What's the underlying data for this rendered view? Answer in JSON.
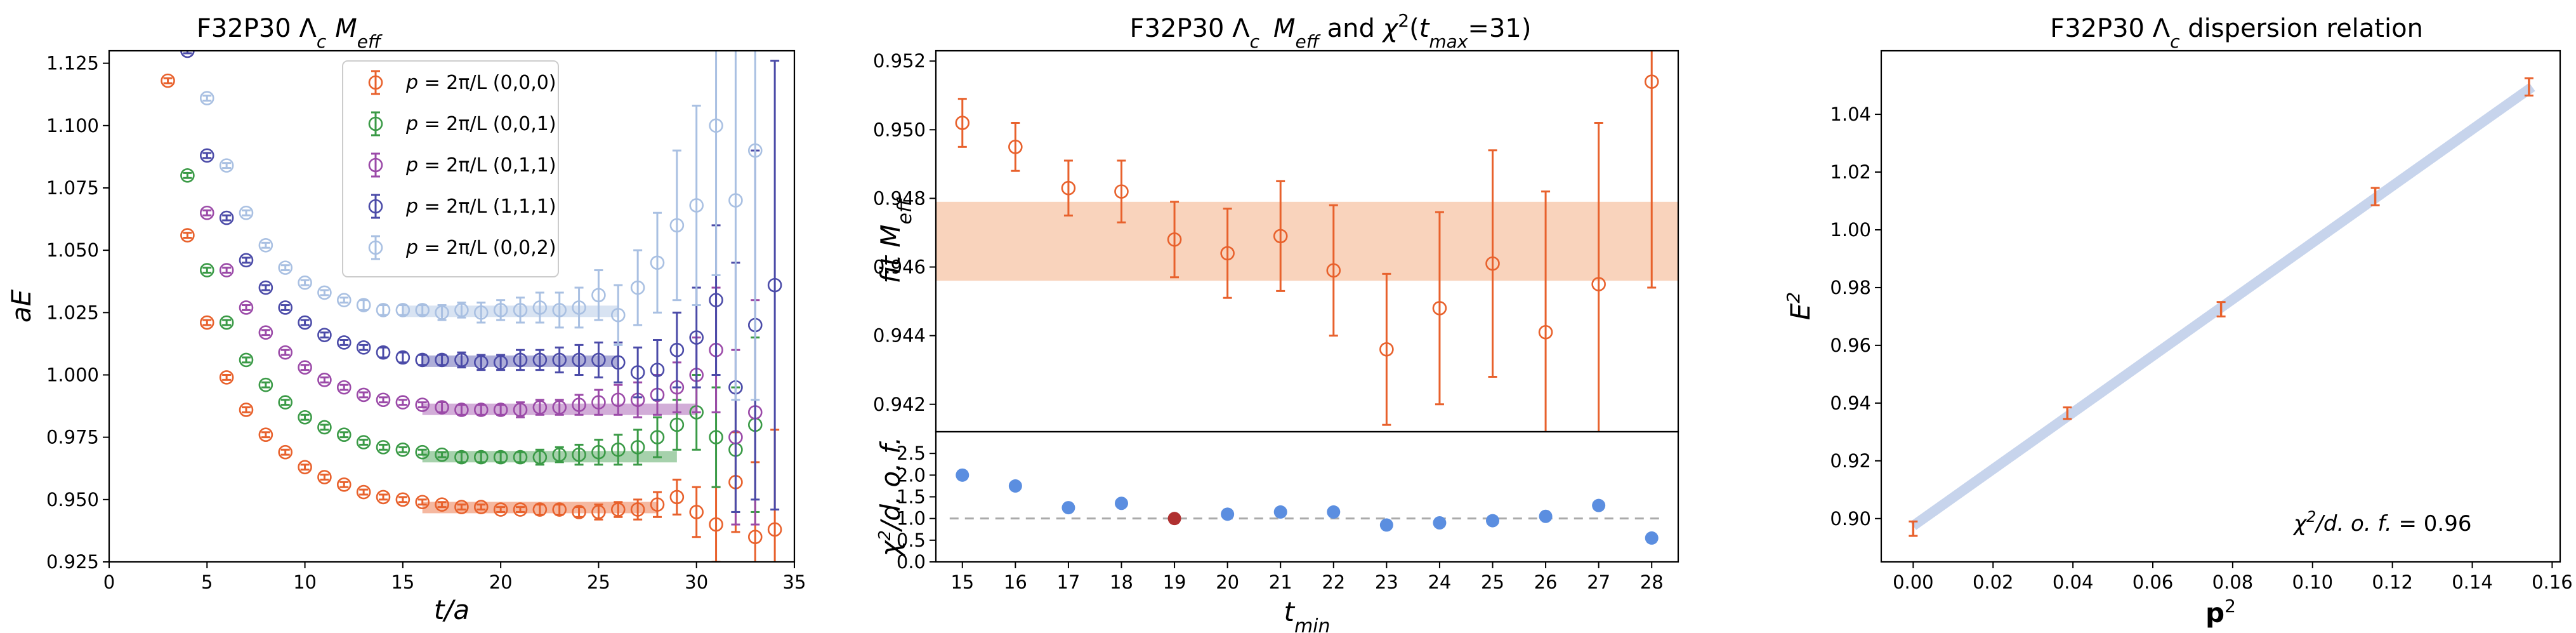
{
  "colors": {
    "p000": "#e8612c",
    "p001": "#3a9a46",
    "p011": "#9b4aa8",
    "p111": "#4b4ba8",
    "p002": "#a9c0e2",
    "band": "#f8cbb0",
    "chi_point": "#5b8ee0",
    "chi_highlight": "#b03030",
    "dispersion_line": "#c7d4ec"
  },
  "chart_data": [
    {
      "type": "scatter",
      "title": "F32P30 Λc Meff",
      "title_parts": {
        "prefix": "F32P30 Λ",
        "sub": "c",
        "suffix_italic": "M",
        "suffix_sub": "eff"
      },
      "xlabel": "t/a",
      "ylabel": "aE",
      "xlim": [
        0,
        35
      ],
      "ylim": [
        0.925,
        1.13
      ],
      "xticks": [
        "0",
        "5",
        "10",
        "15",
        "20",
        "25",
        "30",
        "35"
      ],
      "yticks": [
        "0.925",
        "0.950",
        "0.975",
        "1.000",
        "1.025",
        "1.050",
        "1.075",
        "1.100",
        "1.125"
      ],
      "legend_position": "top-center",
      "series": [
        {
          "key": "p000",
          "name": "p = 2π/L (0,0,0)",
          "momentum": "(0,0,0)",
          "x": [
            3,
            4,
            5,
            6,
            7,
            8,
            9,
            10,
            11,
            12,
            13,
            14,
            15,
            16,
            17,
            18,
            19,
            20,
            21,
            22,
            23,
            24,
            25,
            26,
            27,
            28,
            29,
            30,
            31,
            32,
            33,
            34
          ],
          "y": [
            1.118,
            1.056,
            1.021,
            0.999,
            0.986,
            0.976,
            0.969,
            0.963,
            0.959,
            0.956,
            0.953,
            0.951,
            0.95,
            0.949,
            0.948,
            0.947,
            0.947,
            0.946,
            0.946,
            0.946,
            0.946,
            0.945,
            0.945,
            0.946,
            0.946,
            0.948,
            0.951,
            0.945,
            0.94,
            0.957,
            0.935,
            0.938
          ],
          "err": [
            0.001,
            0.001,
            0.001,
            0.001,
            0.001,
            0.001,
            0.001,
            0.001,
            0.001,
            0.001,
            0.001,
            0.001,
            0.001,
            0.001,
            0.001,
            0.001,
            0.001,
            0.001,
            0.001,
            0.002,
            0.002,
            0.002,
            0.003,
            0.003,
            0.004,
            0.005,
            0.007,
            0.01,
            0.015,
            0.02,
            0.03,
            0.04
          ],
          "fit_range": [
            16,
            28
          ],
          "fit_value": 0.9468
        },
        {
          "key": "p001",
          "name": "p = 2π/L (0,0,1)",
          "momentum": "(0,0,1)",
          "x": [
            4,
            5,
            6,
            7,
            8,
            9,
            10,
            11,
            12,
            13,
            14,
            15,
            16,
            17,
            18,
            19,
            20,
            21,
            22,
            23,
            24,
            25,
            26,
            27,
            28,
            29,
            30,
            31,
            32,
            33
          ],
          "y": [
            1.08,
            1.042,
            1.021,
            1.006,
            0.996,
            0.989,
            0.983,
            0.979,
            0.976,
            0.973,
            0.971,
            0.97,
            0.969,
            0.968,
            0.967,
            0.967,
            0.967,
            0.967,
            0.967,
            0.968,
            0.968,
            0.969,
            0.97,
            0.971,
            0.975,
            0.98,
            0.985,
            0.975,
            0.97,
            0.98
          ],
          "err": [
            0.001,
            0.001,
            0.001,
            0.001,
            0.001,
            0.001,
            0.001,
            0.001,
            0.001,
            0.001,
            0.001,
            0.001,
            0.001,
            0.001,
            0.002,
            0.002,
            0.002,
            0.002,
            0.003,
            0.003,
            0.004,
            0.005,
            0.006,
            0.007,
            0.008,
            0.01,
            0.015,
            0.02,
            0.025,
            0.035
          ],
          "fit_range": [
            16,
            29
          ],
          "fit_value": 0.9672
        },
        {
          "key": "p011",
          "name": "p = 2π/L (0,1,1)",
          "momentum": "(0,1,1)",
          "x": [
            5,
            6,
            7,
            8,
            9,
            10,
            11,
            12,
            13,
            14,
            15,
            16,
            17,
            18,
            19,
            20,
            21,
            22,
            23,
            24,
            25,
            26,
            27,
            28,
            29,
            30,
            31,
            32,
            33
          ],
          "y": [
            1.065,
            1.042,
            1.027,
            1.017,
            1.009,
            1.003,
            0.998,
            0.995,
            0.992,
            0.99,
            0.989,
            0.988,
            0.987,
            0.986,
            0.986,
            0.986,
            0.986,
            0.987,
            0.987,
            0.988,
            0.989,
            0.99,
            0.99,
            0.992,
            0.995,
            1.0,
            1.01,
            0.975,
            0.985
          ],
          "err": [
            0.001,
            0.001,
            0.001,
            0.001,
            0.001,
            0.001,
            0.001,
            0.001,
            0.001,
            0.001,
            0.001,
            0.001,
            0.002,
            0.002,
            0.002,
            0.002,
            0.003,
            0.003,
            0.003,
            0.004,
            0.005,
            0.006,
            0.007,
            0.008,
            0.01,
            0.015,
            0.025,
            0.035,
            0.045
          ],
          "fit_range": [
            16,
            30
          ],
          "fit_value": 0.9862
        },
        {
          "key": "p111",
          "name": "p = 2π/L (1,1,1)",
          "momentum": "(1,1,1)",
          "x": [
            4,
            5,
            6,
            7,
            8,
            9,
            10,
            11,
            12,
            13,
            14,
            15,
            16,
            17,
            18,
            19,
            20,
            21,
            22,
            23,
            24,
            25,
            26,
            27,
            28,
            29,
            30,
            31,
            32,
            33,
            34
          ],
          "y": [
            1.13,
            1.088,
            1.063,
            1.046,
            1.035,
            1.027,
            1.021,
            1.016,
            1.013,
            1.011,
            1.009,
            1.007,
            1.006,
            1.006,
            1.006,
            1.005,
            1.005,
            1.006,
            1.006,
            1.006,
            1.006,
            1.006,
            1.005,
            1.001,
            1.002,
            1.01,
            1.015,
            1.03,
            0.995,
            1.02,
            1.036
          ],
          "err": [
            0.001,
            0.001,
            0.001,
            0.001,
            0.001,
            0.001,
            0.001,
            0.001,
            0.001,
            0.001,
            0.002,
            0.002,
            0.002,
            0.002,
            0.003,
            0.003,
            0.003,
            0.004,
            0.004,
            0.005,
            0.006,
            0.007,
            0.008,
            0.01,
            0.012,
            0.015,
            0.02,
            0.03,
            0.05,
            0.07,
            0.09
          ],
          "fit_range": [
            16,
            26
          ],
          "fit_value": 1.0055
        },
        {
          "key": "p002",
          "name": "p = 2π/L (0,0,2)",
          "momentum": "(0,0,2)",
          "x": [
            5,
            6,
            7,
            8,
            9,
            10,
            11,
            12,
            13,
            14,
            15,
            16,
            17,
            18,
            19,
            20,
            21,
            22,
            23,
            24,
            25,
            26,
            27,
            28,
            29,
            30,
            31,
            32,
            33
          ],
          "y": [
            1.111,
            1.084,
            1.065,
            1.052,
            1.043,
            1.037,
            1.033,
            1.03,
            1.028,
            1.026,
            1.026,
            1.026,
            1.025,
            1.026,
            1.025,
            1.026,
            1.026,
            1.027,
            1.026,
            1.027,
            1.032,
            1.024,
            1.035,
            1.045,
            1.06,
            1.068,
            1.1,
            1.07,
            1.09
          ],
          "err": [
            0.001,
            0.001,
            0.001,
            0.001,
            0.001,
            0.001,
            0.001,
            0.001,
            0.002,
            0.002,
            0.002,
            0.002,
            0.003,
            0.003,
            0.004,
            0.004,
            0.005,
            0.006,
            0.007,
            0.008,
            0.01,
            0.012,
            0.015,
            0.02,
            0.03,
            0.04,
            0.06,
            0.08,
            0.1
          ],
          "fit_range": [
            15,
            26
          ],
          "fit_value": 1.0255
        }
      ]
    },
    {
      "type": "scatter",
      "title": "F32P30 Λc Meff and χ2(tmax=31)",
      "title_parts": {
        "prefix": "F32P30 Λ",
        "sub": "c",
        "m": "M",
        "m_sub": "eff",
        "mid": " and ",
        "chi": "χ",
        "chi_sup": "2",
        "paren_open": "(",
        "t": "t",
        "t_sub": "max",
        "paren_close": "=31)"
      },
      "xlabel": "tmin",
      "xlabel_parts": {
        "main": "t",
        "sub": "min"
      },
      "xlim": [
        14.5,
        28.5
      ],
      "xticks": [
        "15",
        "16",
        "17",
        "18",
        "19",
        "20",
        "21",
        "22",
        "23",
        "24",
        "25",
        "26",
        "27",
        "28"
      ],
      "top": {
        "ylabel": "fit Meff",
        "ylabel_parts": {
          "main": "fit M",
          "sub": "eff"
        },
        "ylim": [
          0.9412,
          0.9523
        ],
        "yticks": [
          "0.942",
          "0.944",
          "0.946",
          "0.948",
          "0.950",
          "0.952"
        ],
        "band": [
          0.9456,
          0.9479
        ],
        "x": [
          15,
          16,
          17,
          18,
          19,
          20,
          21,
          22,
          23,
          24,
          25,
          26,
          27,
          28
        ],
        "y": [
          0.9502,
          0.9495,
          0.9483,
          0.9482,
          0.9468,
          0.9464,
          0.9469,
          0.9459,
          0.9436,
          0.9448,
          0.9461,
          0.9441,
          0.9455,
          0.9514
        ],
        "err": [
          0.0007,
          0.0007,
          0.0008,
          0.0009,
          0.0011,
          0.0013,
          0.0016,
          0.0019,
          0.0022,
          0.0028,
          0.0033,
          0.0041,
          0.0047,
          0.006
        ]
      },
      "bottom": {
        "ylabel": "χ2/d.o.f.",
        "ylabel_parts": {
          "chi": "χ",
          "sup": "2",
          "rest": "/d. o. f."
        },
        "ylim": [
          0,
          3.0
        ],
        "yticks": [
          "0.0",
          "0.5",
          "1.0",
          "1.5",
          "2.0",
          "2.5"
        ],
        "reference": 1.0,
        "x": [
          15,
          16,
          17,
          18,
          19,
          20,
          21,
          22,
          23,
          24,
          25,
          26,
          27,
          28
        ],
        "y": [
          2.0,
          1.75,
          1.25,
          1.35,
          1.0,
          1.1,
          1.15,
          1.15,
          0.85,
          0.9,
          0.95,
          1.05,
          1.3,
          0.55
        ],
        "highlight_x": 19
      }
    },
    {
      "type": "scatter",
      "title": "F32P30 Λc dispersion relation",
      "title_parts": {
        "prefix": "F32P30 Λ",
        "sub": "c",
        "suffix": " dispersion relation"
      },
      "xlabel": "p2",
      "xlabel_parts": {
        "main": "p",
        "sup": "2"
      },
      "ylabel": "E2",
      "ylabel_parts": {
        "main": "E",
        "sup": "2"
      },
      "xlim": [
        -0.008,
        0.162
      ],
      "ylim": [
        0.885,
        1.062
      ],
      "xticks": [
        "0.00",
        "0.02",
        "0.04",
        "0.06",
        "0.08",
        "0.10",
        "0.12",
        "0.14",
        "0.16"
      ],
      "yticks": [
        "0.90",
        "0.92",
        "0.94",
        "0.96",
        "0.98",
        "1.00",
        "1.02",
        "1.04"
      ],
      "x": [
        0.0,
        0.0386,
        0.0771,
        0.1157,
        0.1542
      ],
      "y": [
        0.8965,
        0.9365,
        0.9725,
        1.0115,
        1.0495
      ],
      "err": [
        0.0025,
        0.002,
        0.0025,
        0.003,
        0.003
      ],
      "fit_line": {
        "x0": 0.0,
        "y0": 0.8975,
        "x1": 0.155,
        "y1": 1.0495
      },
      "annotation": "χ2/d.o.f. = 0.96",
      "annotation_parts": {
        "chi": "χ",
        "sup": "2",
        "rest": "/d. o. f.",
        "eq": " = 0.96"
      }
    }
  ]
}
